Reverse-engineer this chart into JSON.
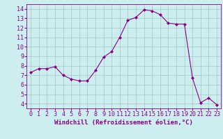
{
  "x": [
    0,
    1,
    2,
    3,
    4,
    5,
    6,
    7,
    8,
    9,
    10,
    11,
    12,
    13,
    14,
    15,
    16,
    17,
    18,
    19,
    20,
    21,
    22,
    23
  ],
  "y": [
    7.3,
    7.7,
    7.7,
    7.9,
    7.0,
    6.6,
    6.4,
    6.4,
    7.5,
    8.9,
    9.5,
    11.0,
    12.8,
    13.1,
    13.9,
    13.8,
    13.4,
    12.5,
    12.4,
    12.4,
    6.7,
    4.1,
    4.6,
    3.9
  ],
  "line_color": "#880088",
  "marker": "D",
  "marker_size": 2,
  "bg_color": "#cceeee",
  "grid_color": "#aacccc",
  "xlabel": "Windchill (Refroidissement éolien,°C)",
  "xlabel_fontsize": 6.5,
  "tick_fontsize": 6,
  "ylim": [
    3.5,
    14.5
  ],
  "xlim": [
    -0.5,
    23.5
  ],
  "yticks": [
    4,
    5,
    6,
    7,
    8,
    9,
    10,
    11,
    12,
    13,
    14
  ],
  "xticks": [
    0,
    1,
    2,
    3,
    4,
    5,
    6,
    7,
    8,
    9,
    10,
    11,
    12,
    13,
    14,
    15,
    16,
    17,
    18,
    19,
    20,
    21,
    22,
    23
  ]
}
